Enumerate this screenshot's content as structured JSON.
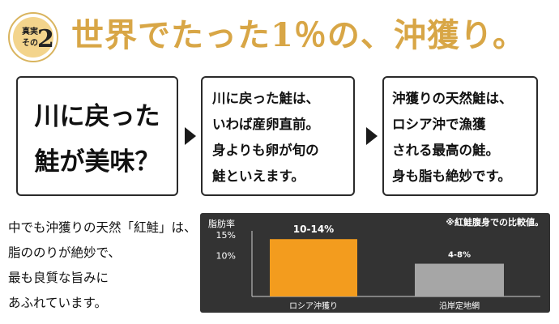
{
  "badge": {
    "label_line1": "真実",
    "label_line2": "その",
    "number": "2"
  },
  "headline": "世界でたった1％の、沖獲り。",
  "box1": {
    "line1": "川に戻った",
    "line2": "鮭が美味？"
  },
  "box2": {
    "lines": [
      "川に戻った鮭は、",
      "いわば産卵直前。",
      "身よりも卵が旬の",
      "鮭といえます。"
    ]
  },
  "box3": {
    "lines": [
      "沖獲りの天然鮭は、",
      "ロシア沖で漁獲",
      "される最高の鮭。",
      "身も脂も絶妙です。"
    ]
  },
  "description": {
    "lines": [
      "中でも沖獲りの天然「紅鮭」は、",
      "脂ののりが絶妙で、",
      "最も良質な旨みに",
      "あふれています。"
    ]
  },
  "colors": {
    "headline": "#d8a646",
    "accent_bar": "#f39c1e",
    "gray_bar": "#a6a6a6",
    "chart_bg": "#333333"
  },
  "chart_data": {
    "type": "bar",
    "ylabel": "脂肪率",
    "note": "※紅鮭腹身での比較値。",
    "yticks": [
      "15%",
      "10%"
    ],
    "categories": [
      "ロシア沖獲り",
      "沿岸定地網"
    ],
    "value_labels": [
      "10-14%",
      "4-8%"
    ],
    "series": [
      {
        "values": [
          14,
          8
        ]
      }
    ],
    "ylim": [
      0,
      18
    ],
    "grid": false
  }
}
